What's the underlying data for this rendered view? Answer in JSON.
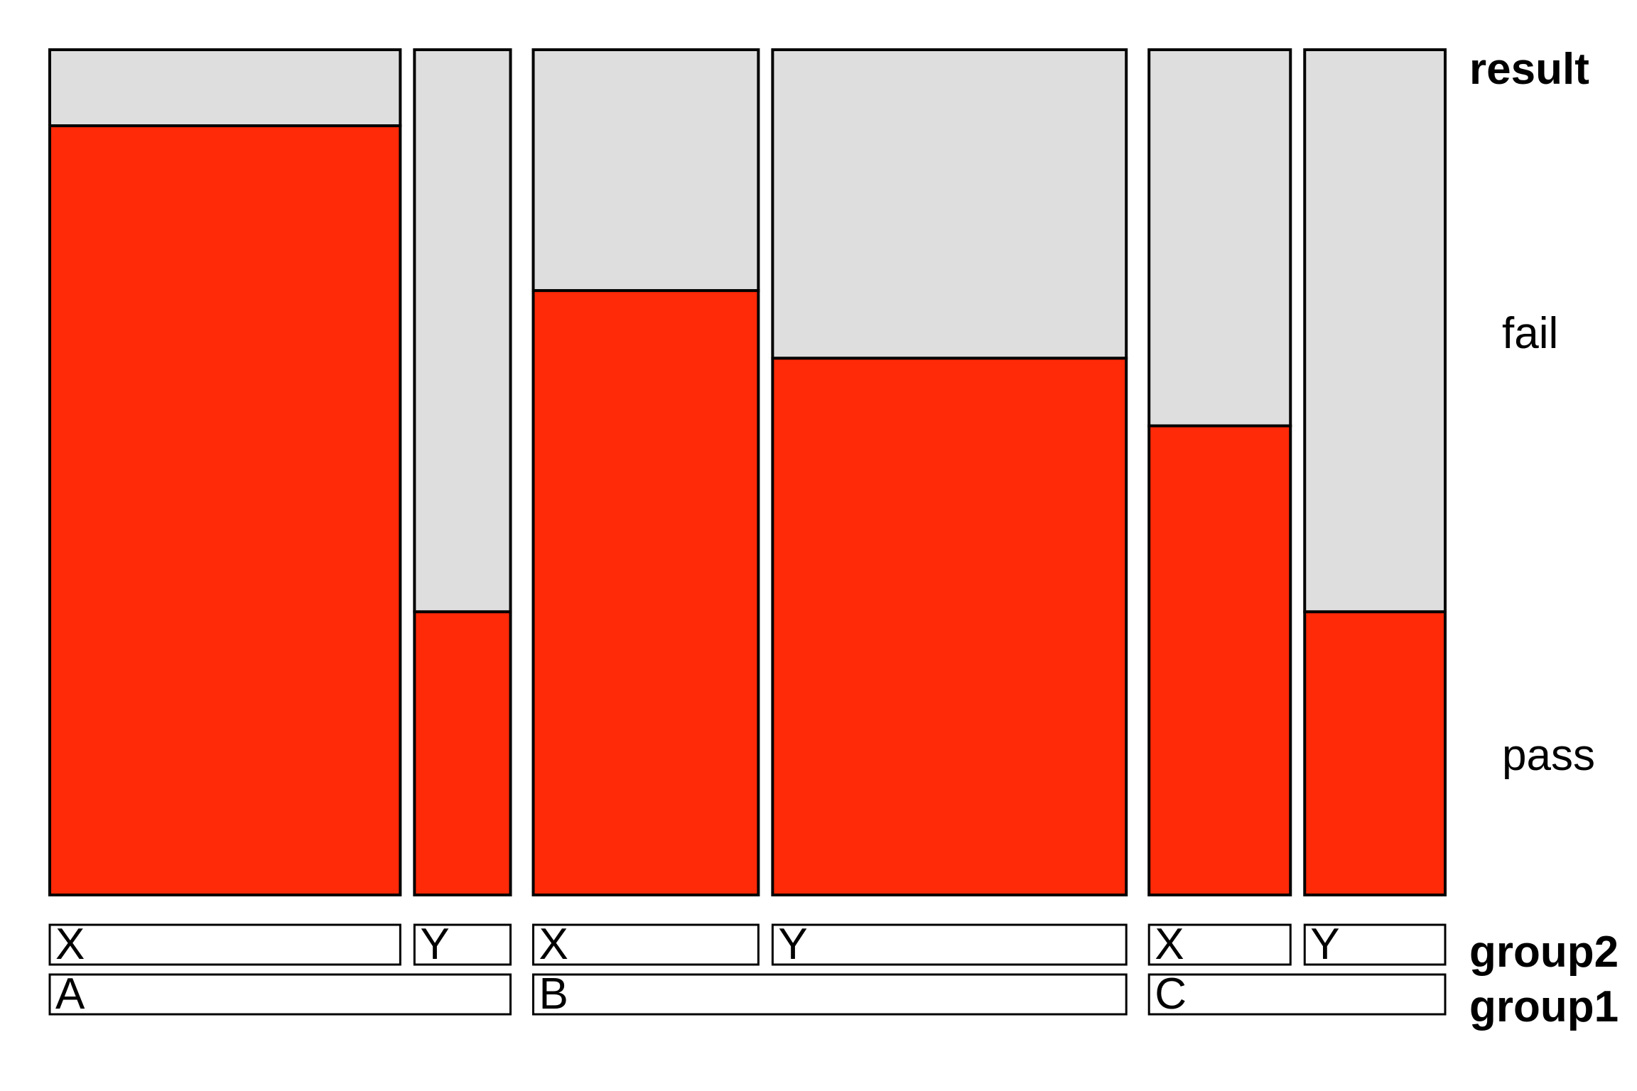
{
  "chart_data": {
    "type": "mosaic",
    "variables": {
      "result": "result",
      "group2": "group2",
      "group1": "group1"
    },
    "result_levels": [
      "pass",
      "fail"
    ],
    "colors": {
      "pass": "#ff2a08",
      "fail": "#dedede"
    },
    "groups": [
      {
        "group1": "A",
        "subgroups": [
          {
            "group2": "X",
            "width_share": 0.2555,
            "pass_fraction": 0.91
          },
          {
            "group2": "Y",
            "width_share": 0.07,
            "pass_fraction": 0.335
          }
        ]
      },
      {
        "group1": "B",
        "subgroups": [
          {
            "group2": "X",
            "width_share": 0.1641,
            "pass_fraction": 0.715
          },
          {
            "group2": "Y",
            "width_share": 0.2578,
            "pass_fraction": 0.635
          }
        ]
      },
      {
        "group1": "C",
        "subgroups": [
          {
            "group2": "X",
            "width_share": 0.1031,
            "pass_fraction": 0.555
          },
          {
            "group2": "Y",
            "width_share": 0.1024,
            "pass_fraction": 0.335
          }
        ]
      }
    ]
  }
}
